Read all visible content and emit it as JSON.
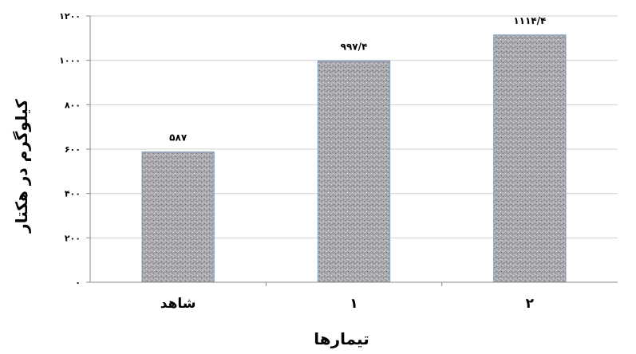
{
  "chart_data": {
    "type": "bar",
    "categories": [
      "شاهد",
      "۱",
      "۲"
    ],
    "values": [
      587,
      997.4,
      1114.4
    ],
    "value_labels": [
      "۵۸۷",
      "۹۹۷/۴",
      "۱۱۱۴/۴"
    ],
    "xlabel": "تیمارها",
    "ylabel": "کیلوگرم در هکتار",
    "ylim": [
      0,
      1200
    ],
    "yticks": [
      0,
      200,
      400,
      600,
      800,
      1000,
      1200
    ],
    "ytick_labels": [
      "۰",
      "۲۰۰",
      "۴۰۰",
      "۶۰۰",
      "۸۰۰",
      "۱۰۰۰",
      "۱۲۰۰"
    ],
    "grid": true,
    "legend": "none",
    "colors": {
      "bar_fill": "#a9a9ad",
      "bar_border": "#7f9bbf",
      "grid": "#d0d0d0",
      "axis": "#888888"
    }
  }
}
